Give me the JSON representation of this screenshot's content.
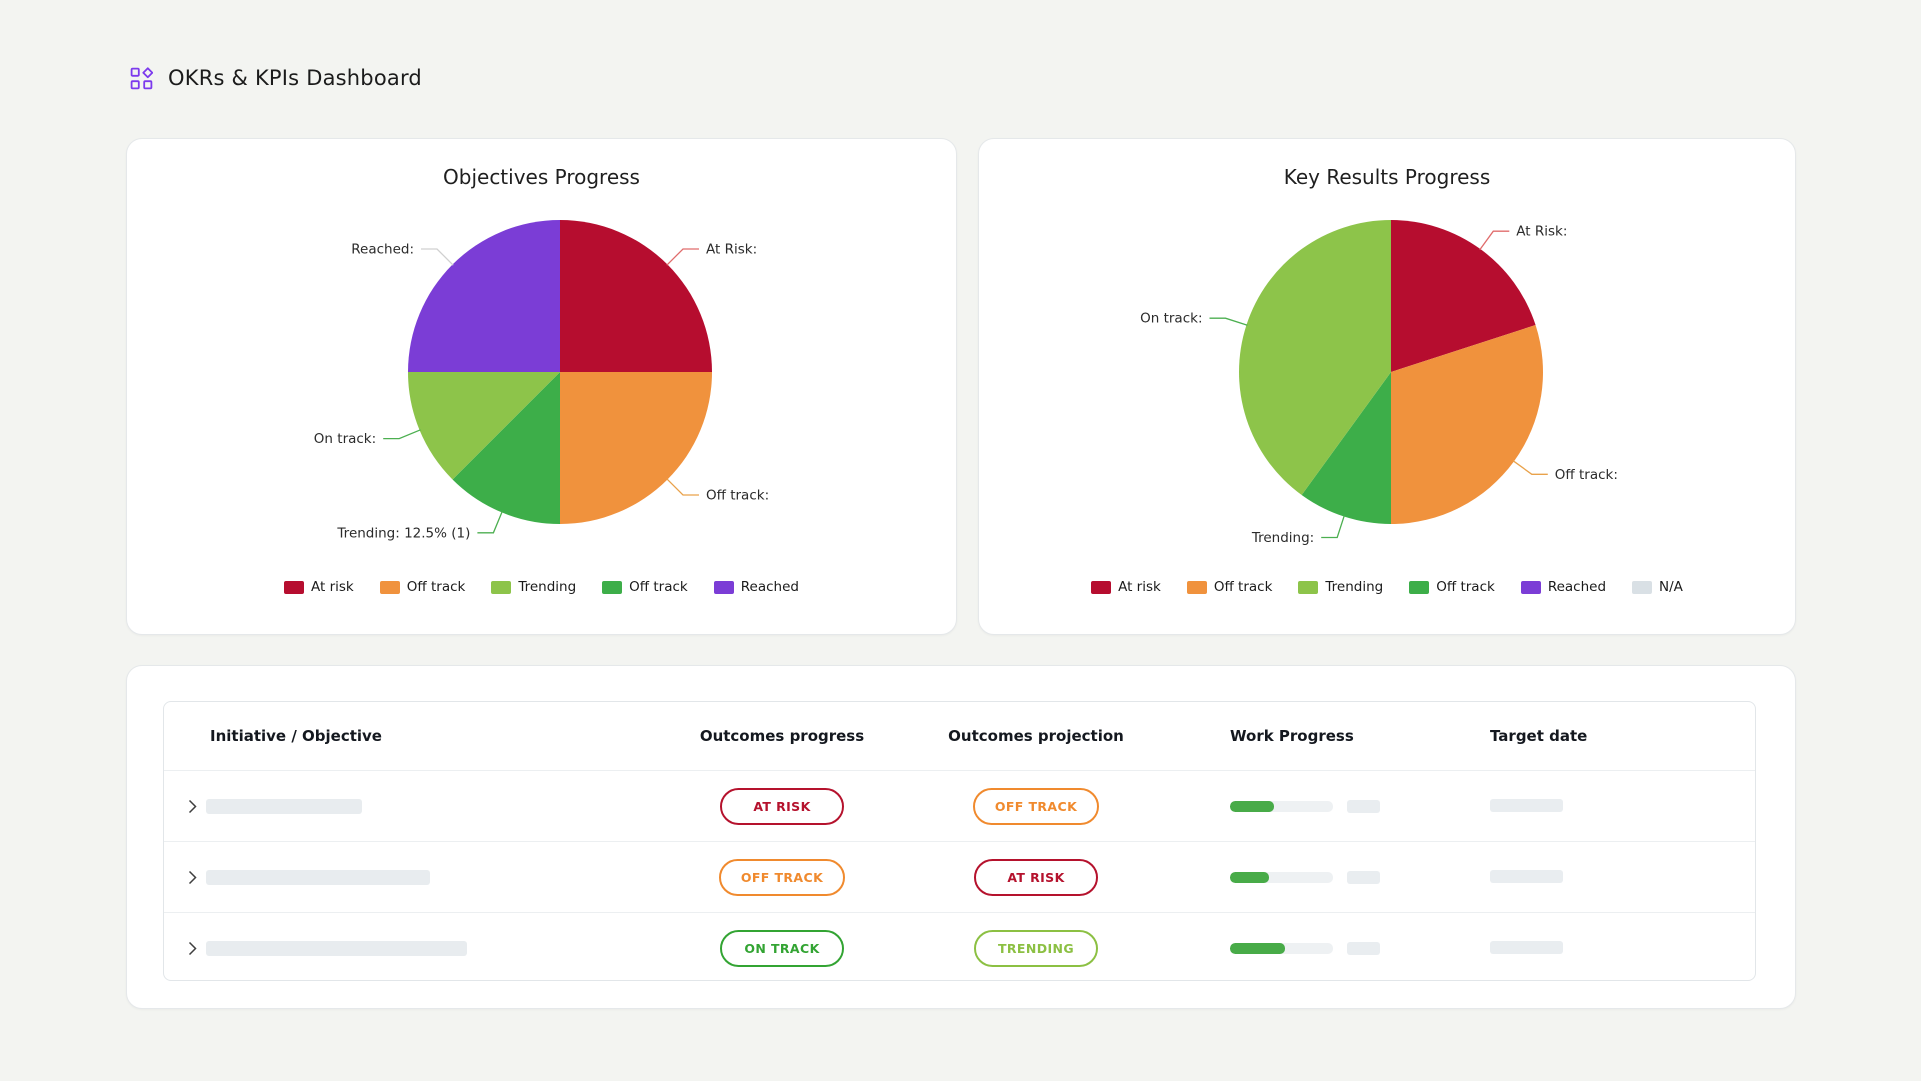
{
  "page": {
    "title": "OKRs & KPIs Dashboard",
    "accent_color": "#7C3AED",
    "background_color": "#F3F4F1"
  },
  "chart_data": [
    {
      "type": "pie",
      "title": "Objectives Progress",
      "legend_position": "bottom",
      "slices": [
        {
          "name": "at-risk",
          "callout": "At Risk:",
          "value": 25,
          "color": "#B60D2F",
          "leader_color": "#E06C6C"
        },
        {
          "name": "off-track",
          "callout": "Off track:",
          "value": 25,
          "color": "#F0923D",
          "leader_color": "#E9A24B"
        },
        {
          "name": "trending",
          "callout": "Trending: 12.5% (1)",
          "value": 12.5,
          "color": "#3DAE49",
          "leader_color": "#4CAF50"
        },
        {
          "name": "on-track",
          "callout": "On track:",
          "value": 12.5,
          "color": "#8DC44A",
          "leader_color": "#4CAF50"
        },
        {
          "name": "reached",
          "callout": "Reached:",
          "value": 25,
          "color": "#7B3DD6",
          "leader_color": "#D0D0D0"
        }
      ],
      "legend": [
        {
          "label": "At risk",
          "color": "#B60D2F"
        },
        {
          "label": "Off track",
          "color": "#F0923D"
        },
        {
          "label": "Trending",
          "color": "#8DC44A"
        },
        {
          "label": "Off track",
          "color": "#3DAE49"
        },
        {
          "label": "Reached",
          "color": "#7B3DD6"
        }
      ]
    },
    {
      "type": "pie",
      "title": "Key Results Progress",
      "legend_position": "bottom",
      "slices": [
        {
          "name": "at-risk",
          "callout": "At Risk:",
          "value": 20,
          "color": "#B60D2F",
          "leader_color": "#E06C6C"
        },
        {
          "name": "off-track",
          "callout": "Off track:",
          "value": 30,
          "color": "#F0923D",
          "leader_color": "#E9A24B"
        },
        {
          "name": "trending",
          "callout": "Trending:",
          "value": 10,
          "color": "#3DAE49",
          "leader_color": "#4CAF50"
        },
        {
          "name": "on-track",
          "callout": "On track:",
          "value": 40,
          "color": "#8DC44A",
          "leader_color": "#4CAF50"
        }
      ],
      "legend": [
        {
          "label": "At risk",
          "color": "#B60D2F"
        },
        {
          "label": "Off track",
          "color": "#F0923D"
        },
        {
          "label": "Trending",
          "color": "#8DC44A"
        },
        {
          "label": "Off track",
          "color": "#3DAE49"
        },
        {
          "label": "Reached",
          "color": "#7B3DD6"
        },
        {
          "label": "N/A",
          "color": "#D9E0E5"
        }
      ]
    }
  ],
  "table": {
    "headers": [
      "Initiative / Objective",
      "Outcomes progress",
      "Outcomes projection",
      "Work Progress",
      "Target date"
    ],
    "rows": [
      {
        "outcomes_progress": {
          "label": "AT RISK",
          "color": "#B5122D"
        },
        "outcomes_projection": {
          "label": "OFF TRACK",
          "color": "#F08A2E"
        },
        "work_progress_pct": 43,
        "title_placeholder_width": 156
      },
      {
        "outcomes_progress": {
          "label": "OFF TRACK",
          "color": "#F08A2E"
        },
        "outcomes_projection": {
          "label": "AT RISK",
          "color": "#B5122D"
        },
        "work_progress_pct": 38,
        "title_placeholder_width": 224
      },
      {
        "outcomes_progress": {
          "label": "ON TRACK",
          "color": "#33A433"
        },
        "outcomes_projection": {
          "label": "TRENDING",
          "color": "#8CC043"
        },
        "work_progress_pct": 53,
        "title_placeholder_width": 261
      }
    ]
  }
}
